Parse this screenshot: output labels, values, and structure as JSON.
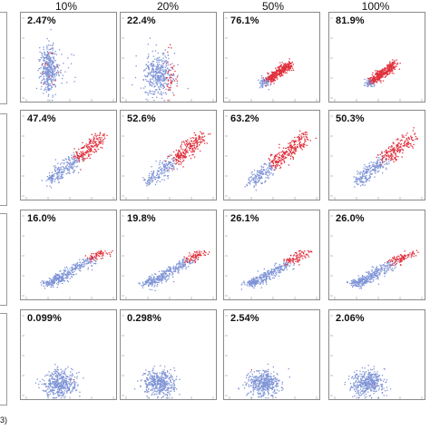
{
  "columns": [
    "10%",
    "20%",
    "50%",
    "100%"
  ],
  "corner_label": "3)",
  "colors": {
    "blue": "#7f94d6",
    "red": "#e0303c",
    "frame": "#8a8a8a"
  },
  "chart_data": {
    "type": "scatter",
    "title": "",
    "grid": false,
    "panels": [
      {
        "row": 1,
        "column": "10%",
        "percent": "2.47%",
        "value": 2.47,
        "pattern": "vertical-blob"
      },
      {
        "row": 1,
        "column": "20%",
        "percent": "22.4%",
        "value": 22.4,
        "pattern": "vertical-blob-shifted"
      },
      {
        "row": 1,
        "column": "50%",
        "percent": "76.1%",
        "value": 76.1,
        "pattern": "small-diagonal"
      },
      {
        "row": 1,
        "column": "100%",
        "percent": "81.9%",
        "value": 81.9,
        "pattern": "small-diagonal"
      },
      {
        "row": 2,
        "column": "10%",
        "percent": "47.4%",
        "value": 47.4,
        "pattern": "diagonal"
      },
      {
        "row": 2,
        "column": "20%",
        "percent": "52.6%",
        "value": 52.6,
        "pattern": "diagonal"
      },
      {
        "row": 2,
        "column": "50%",
        "percent": "63.2%",
        "value": 63.2,
        "pattern": "diagonal"
      },
      {
        "row": 2,
        "column": "100%",
        "percent": "50.3%",
        "value": 50.3,
        "pattern": "diagonal"
      },
      {
        "row": 3,
        "column": "10%",
        "percent": "16.0%",
        "value": 16.0,
        "pattern": "tail"
      },
      {
        "row": 3,
        "column": "20%",
        "percent": "19.8%",
        "value": 19.8,
        "pattern": "tail"
      },
      {
        "row": 3,
        "column": "50%",
        "percent": "26.1%",
        "value": 26.1,
        "pattern": "tail"
      },
      {
        "row": 3,
        "column": "100%",
        "percent": "26.0%",
        "value": 26.0,
        "pattern": "tail"
      },
      {
        "row": 4,
        "column": "10%",
        "percent": "0.099%",
        "value": 0.099,
        "pattern": "blob"
      },
      {
        "row": 4,
        "column": "20%",
        "percent": "0.298%",
        "value": 0.298,
        "pattern": "blob"
      },
      {
        "row": 4,
        "column": "50%",
        "percent": "2.54%",
        "value": 2.54,
        "pattern": "blob"
      },
      {
        "row": 4,
        "column": "100%",
        "percent": "2.06%",
        "value": 2.06,
        "pattern": "blob"
      }
    ]
  }
}
